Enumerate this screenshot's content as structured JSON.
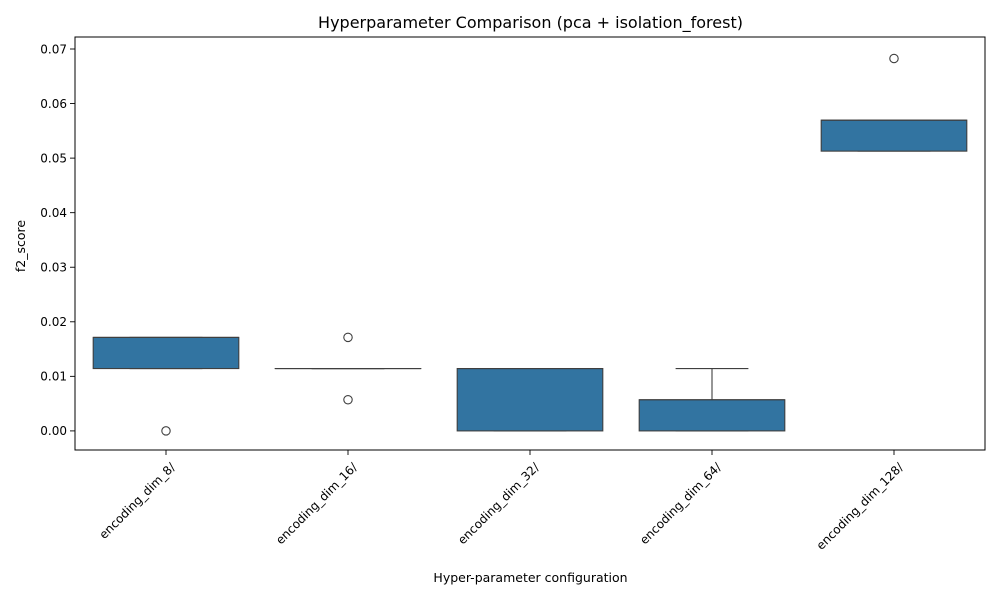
{
  "chart_data": {
    "type": "box",
    "title": "Hyperparameter Comparison (pca + isolation_forest)",
    "xlabel": "Hyper-parameter configuration",
    "ylabel": "f2_score",
    "ylim": [
      -0.0035,
      0.0722
    ],
    "yticks": [
      0.0,
      0.01,
      0.02,
      0.03,
      0.04,
      0.05,
      0.06,
      0.07
    ],
    "ytick_labels": [
      "0.00",
      "0.01",
      "0.02",
      "0.03",
      "0.04",
      "0.05",
      "0.06",
      "0.07"
    ],
    "grid": false,
    "legend": "none",
    "box_color": "#3274a1",
    "categories": [
      "encoding_dim_8/",
      "encoding_dim_16/",
      "encoding_dim_32/",
      "encoding_dim_64/",
      "encoding_dim_128/"
    ],
    "boxes": [
      {
        "category": "encoding_dim_8/",
        "whisker_low": 0.01143,
        "q1": 0.01143,
        "median": 0.01714,
        "q3": 0.01714,
        "whisker_high": 0.01714,
        "outliers": [
          0.0
        ]
      },
      {
        "category": "encoding_dim_16/",
        "whisker_low": 0.01143,
        "q1": 0.01143,
        "median": 0.01143,
        "q3": 0.01143,
        "whisker_high": 0.01143,
        "outliers": [
          0.01714,
          0.00571
        ]
      },
      {
        "category": "encoding_dim_32/",
        "whisker_low": 0.0,
        "q1": 0.0,
        "median": 0.01143,
        "q3": 0.01143,
        "whisker_high": 0.01143,
        "outliers": []
      },
      {
        "category": "encoding_dim_64/",
        "whisker_low": 0.0,
        "q1": 0.0,
        "median": 0.00571,
        "q3": 0.00571,
        "whisker_high": 0.01143,
        "outliers": []
      },
      {
        "category": "encoding_dim_128/",
        "whisker_low": 0.05128,
        "q1": 0.05128,
        "median": 0.05696,
        "q3": 0.05696,
        "whisker_high": 0.05696,
        "outliers": [
          0.06826
        ]
      }
    ]
  }
}
